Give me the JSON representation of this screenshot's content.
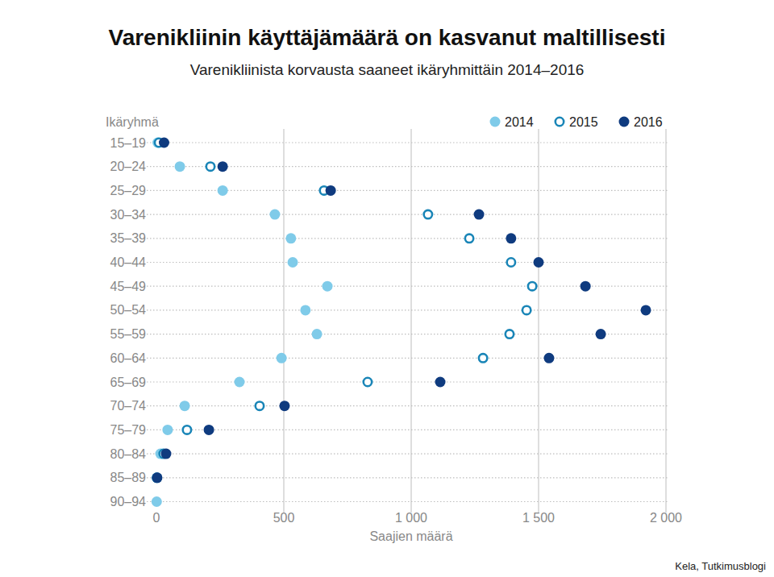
{
  "chart_data": {
    "type": "scatter",
    "orientation": "horizontal",
    "title": "Varenikliinin käyttäjämäärä on kasvanut maltillisesti",
    "subtitle": "Varenikliinista korvausta saaneet ikäryhmittäin 2014–2016",
    "y_label": "Ikäryhmä",
    "x_label": "Saajien määrä",
    "source": "Kela, Tutkimusblogi",
    "categories": [
      "15–19",
      "20–24",
      "25–29",
      "30–34",
      "35–39",
      "40–44",
      "45–49",
      "50–54",
      "55–59",
      "60–64",
      "65–69",
      "70–74",
      "75–79",
      "80–84",
      "85–89",
      "90–94"
    ],
    "series": [
      {
        "name": "2014",
        "color": "#7fcbe9",
        "marker": "circle",
        "values": [
          5,
          92,
          260,
          465,
          528,
          535,
          671,
          585,
          630,
          491,
          326,
          111,
          44,
          16,
          2,
          1
        ]
      },
      {
        "name": "2015",
        "color": "#1985b7",
        "marker": "open-circle",
        "values": [
          10,
          212,
          658,
          1066,
          1228,
          1392,
          1475,
          1453,
          1386,
          1282,
          829,
          405,
          120,
          28,
          2,
          null
        ]
      },
      {
        "name": "2016",
        "color": "#0f3b7f",
        "marker": "circle",
        "values": [
          30,
          260,
          684,
          1266,
          1392,
          1500,
          1684,
          1921,
          1744,
          1541,
          1114,
          503,
          206,
          38,
          3,
          null
        ]
      }
    ],
    "xlim": [
      0,
      2000
    ],
    "xticks": [
      0,
      {
        "value": 500,
        "label": "500"
      },
      {
        "value": 1000,
        "label": "1 000"
      },
      {
        "value": 1500,
        "label": "1 500"
      },
      {
        "value": 2000,
        "label": "2 000"
      }
    ],
    "grid": true,
    "legend": "top-right"
  }
}
